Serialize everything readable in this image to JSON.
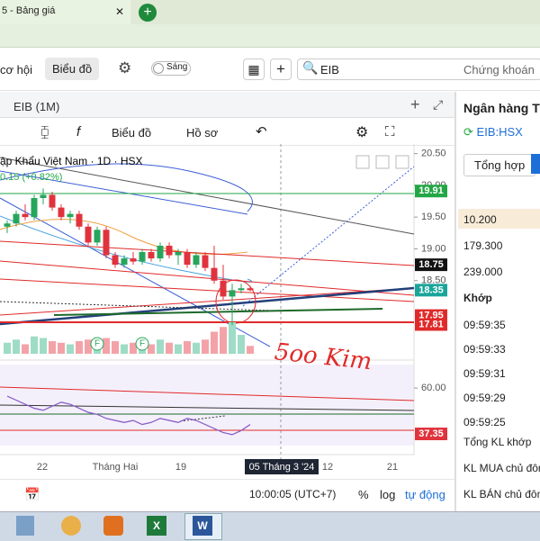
{
  "browser": {
    "tab_title": "5 - Bảng giá"
  },
  "toolbar": {
    "tab_opportunity": "cơ hội",
    "tab_chart": "Biểu đồ",
    "theme_toggle": "Sáng",
    "search_text": "EIB",
    "market_dropdown": "Chứng khoán"
  },
  "chart": {
    "window_title": "EIB (1M)",
    "chart_type_button": "Biểu đồ",
    "profile_button": "Hồ sơ",
    "legend_symbol": "ập Khẩu Việt Nam · 1D · HSX",
    "legend_change": "0.15 (+0.82%)",
    "price_ylim": [
      17.25,
      20.65
    ],
    "price_ticks": [
      {
        "value": 20.5,
        "label": "20.50"
      },
      {
        "value": 20,
        "label": "20.00"
      },
      {
        "value": 19.5,
        "label": "19.50"
      },
      {
        "value": 19,
        "label": "19.00"
      },
      {
        "value": 18.5,
        "label": "18.50"
      }
    ],
    "price_badges": [
      {
        "value": 19.91,
        "label": "19.91",
        "color": "#22a745"
      },
      {
        "value": 18.75,
        "label": "18.75",
        "color": "#111111"
      },
      {
        "value": 18.35,
        "label": "18.35",
        "color": "#1aa59a"
      },
      {
        "value": 17.95,
        "label": "17.95",
        "color": "#e02a2a"
      },
      {
        "value": 17.81,
        "label": "17.81",
        "color": "#e02a2a"
      }
    ],
    "candles": [
      {
        "open": 19.35,
        "high": 19.45,
        "low": 19.25,
        "close": 19.4
      },
      {
        "open": 19.4,
        "high": 19.6,
        "low": 19.35,
        "close": 19.55
      },
      {
        "open": 19.55,
        "high": 19.7,
        "low": 19.45,
        "close": 19.5
      },
      {
        "open": 19.5,
        "high": 19.85,
        "low": 19.45,
        "close": 19.8
      },
      {
        "open": 19.8,
        "high": 19.95,
        "low": 19.7,
        "close": 19.85
      },
      {
        "open": 19.85,
        "high": 19.9,
        "low": 19.6,
        "close": 19.65
      },
      {
        "open": 19.65,
        "high": 19.7,
        "low": 19.45,
        "close": 19.5
      },
      {
        "open": 19.5,
        "high": 19.6,
        "low": 19.4,
        "close": 19.55
      },
      {
        "open": 19.55,
        "high": 19.6,
        "low": 19.3,
        "close": 19.35
      },
      {
        "open": 19.35,
        "high": 19.4,
        "low": 19.05,
        "close": 19.1
      },
      {
        "open": 19.1,
        "high": 19.35,
        "low": 19.05,
        "close": 19.3
      },
      {
        "open": 19.3,
        "high": 19.35,
        "low": 18.85,
        "close": 18.9
      },
      {
        "open": 18.9,
        "high": 18.95,
        "low": 18.7,
        "close": 18.75
      },
      {
        "open": 18.75,
        "high": 18.9,
        "low": 18.7,
        "close": 18.85
      },
      {
        "open": 18.85,
        "high": 18.95,
        "low": 18.75,
        "close": 18.8
      },
      {
        "open": 18.8,
        "high": 19.0,
        "low": 18.75,
        "close": 18.95
      },
      {
        "open": 18.95,
        "high": 19.0,
        "low": 18.8,
        "close": 18.85
      },
      {
        "open": 18.85,
        "high": 19.1,
        "low": 18.8,
        "close": 19.05
      },
      {
        "open": 19.05,
        "high": 19.1,
        "low": 18.85,
        "close": 18.9
      },
      {
        "open": 18.9,
        "high": 19.0,
        "low": 18.75,
        "close": 18.95
      },
      {
        "open": 18.95,
        "high": 19.0,
        "low": 18.7,
        "close": 18.75
      },
      {
        "open": 18.75,
        "high": 18.95,
        "low": 18.7,
        "close": 18.9
      },
      {
        "open": 18.9,
        "high": 18.95,
        "low": 18.65,
        "close": 18.7
      },
      {
        "open": 18.7,
        "high": 19.05,
        "low": 18.45,
        "close": 18.5
      },
      {
        "open": 18.5,
        "high": 18.75,
        "low": 18.2,
        "close": 18.25
      },
      {
        "open": 18.25,
        "high": 18.45,
        "low": 17.8,
        "close": 18.35
      },
      {
        "open": 18.35,
        "high": 18.45,
        "low": 18.3,
        "close": 18.38
      },
      {
        "open": 18.38,
        "high": 18.42,
        "low": 18.33,
        "close": 18.35
      }
    ],
    "volume_ylim": [
      0,
      100
    ],
    "volumes": [
      35,
      45,
      30,
      55,
      50,
      40,
      35,
      30,
      40,
      45,
      35,
      50,
      40,
      30,
      35,
      40,
      30,
      45,
      35,
      30,
      40,
      35,
      45,
      70,
      85,
      100,
      60,
      25
    ],
    "event_markers": [
      "F",
      "F"
    ],
    "osc_ylim": [
      33.8,
      71.6
    ],
    "osc_ticks": [
      {
        "value": 60,
        "label": "60.00"
      }
    ],
    "osc_badge": {
      "value": 37.35,
      "label": "37.35"
    },
    "osc_values": [
      56,
      54,
      52,
      50,
      49,
      51,
      53,
      52,
      50,
      48,
      47,
      45,
      44,
      43,
      44,
      42,
      43,
      45,
      44,
      43,
      45,
      44,
      42,
      40,
      38,
      37,
      39,
      42
    ],
    "date_labels": [
      "22",
      "Tháng Hai",
      "19",
      "05 Tháng 3 '24",
      "12",
      "21"
    ],
    "annotation": "5oo Kim"
  },
  "status": {
    "time": "10:00:05 (UTC+7)",
    "percent": "%",
    "log": "log",
    "auto": "tự động"
  },
  "side_panel": {
    "title": "Ngân hàng T",
    "symbol": "EIB:HSX",
    "tab": "Tổng hợp",
    "prices": [
      "10.200",
      "179.300",
      "239.000"
    ],
    "match_header": "Khớp",
    "times": [
      "09:59:35",
      "09:59:33",
      "09:59:31",
      "09:59:29",
      "09:59:25"
    ],
    "summary": [
      "Tổng KL khớp",
      "KL MUA chủ đôn",
      "KL BÁN chủ đôn"
    ]
  }
}
